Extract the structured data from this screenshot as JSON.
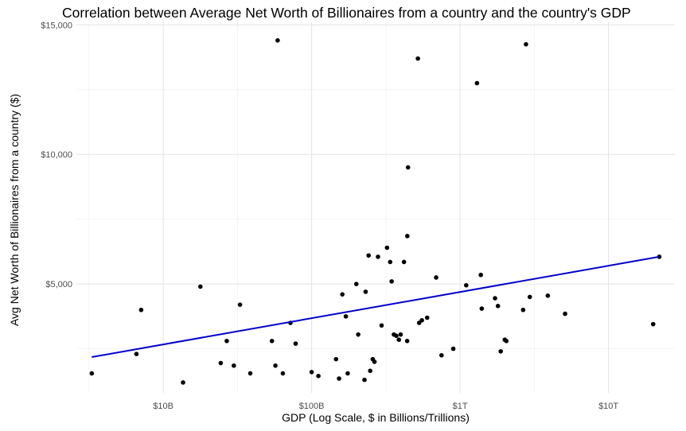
{
  "chart_data": {
    "type": "scatter",
    "title": "Correlation between Average Net Worth of Billionaires from a country and the country's GDP",
    "xlabel": "GDP (Log Scale, $ in Billions/Trillions)",
    "ylabel": "Avg Net Worth of Billionaires from a country ($)",
    "x_scale": "log10",
    "xlim": [
      2600000000.0,
      28000000000000.0
    ],
    "ylim": [
      800,
      15100
    ],
    "grid": true,
    "x_ticks": [
      {
        "value": 10000000000.0,
        "label": "$10B"
      },
      {
        "value": 100000000000.0,
        "label": "$100B"
      },
      {
        "value": 1000000000000.0,
        "label": "$1T"
      },
      {
        "value": 10000000000000.0,
        "label": "$10T"
      }
    ],
    "y_ticks": [
      {
        "value": 5000,
        "label": "$5,000"
      },
      {
        "value": 10000,
        "label": "$10,000"
      },
      {
        "value": 15000,
        "label": "$15,000"
      }
    ],
    "points": [
      [
        3300000000.0,
        1550
      ],
      [
        6600000000.0,
        2300
      ],
      [
        7100000000.0,
        4000
      ],
      [
        13600000000.0,
        1200
      ],
      [
        17800000000.0,
        4900
      ],
      [
        24400000000.0,
        1950
      ],
      [
        26800000000.0,
        2800
      ],
      [
        29900000000.0,
        1850
      ],
      [
        32900000000.0,
        4200
      ],
      [
        38600000000.0,
        1550
      ],
      [
        54000000000.0,
        2800
      ],
      [
        57000000000.0,
        1850
      ],
      [
        64000000000.0,
        1550
      ],
      [
        59000000000.0,
        14400
      ],
      [
        72000000000.0,
        3500
      ],
      [
        78000000000.0,
        2700
      ],
      [
        100000000000.0,
        1600
      ],
      [
        111000000000.0,
        1450
      ],
      [
        146000000000.0,
        2100
      ],
      [
        153000000000.0,
        1350
      ],
      [
        161000000000.0,
        4600
      ],
      [
        170000000000.0,
        3750
      ],
      [
        175000000000.0,
        1550
      ],
      [
        200000000000.0,
        5000
      ],
      [
        206000000000.0,
        3050
      ],
      [
        227000000000.0,
        1300
      ],
      [
        231000000000.0,
        4700
      ],
      [
        242000000000.0,
        6100
      ],
      [
        248000000000.0,
        1650
      ],
      [
        258000000000.0,
        2100
      ],
      [
        265000000000.0,
        2000
      ],
      [
        280000000000.0,
        6050
      ],
      [
        296000000000.0,
        3400
      ],
      [
        322000000000.0,
        6400
      ],
      [
        338000000000.0,
        5850
      ],
      [
        346000000000.0,
        5100
      ],
      [
        358000000000.0,
        3050
      ],
      [
        372000000000.0,
        3000
      ],
      [
        387000000000.0,
        2850
      ],
      [
        398000000000.0,
        3050
      ],
      [
        419000000000.0,
        5850
      ],
      [
        440000000000.0,
        2800
      ],
      [
        441000000000.0,
        6850
      ],
      [
        446000000000.0,
        9500
      ],
      [
        530000000000.0,
        3500
      ],
      [
        520000000000.0,
        13700
      ],
      [
        553000000000.0,
        3600
      ],
      [
        600000000000.0,
        3700
      ],
      [
        690000000000.0,
        5250
      ],
      [
        750000000000.0,
        2250
      ],
      [
        900000000000.0,
        2500
      ],
      [
        1100000000000.0,
        4950
      ],
      [
        1300000000000.0,
        12750
      ],
      [
        1380000000000.0,
        5350
      ],
      [
        1400000000000.0,
        4050
      ],
      [
        1720000000000.0,
        4450
      ],
      [
        1800000000000.0,
        4150
      ],
      [
        1880000000000.0,
        2400
      ],
      [
        2000000000000.0,
        2850
      ],
      [
        2050000000000.0,
        2800
      ],
      [
        2660000000000.0,
        4000
      ],
      [
        2780000000000.0,
        14250
      ],
      [
        2950000000000.0,
        4500
      ],
      [
        3900000000000.0,
        4550
      ],
      [
        5100000000000.0,
        3850
      ],
      [
        20000000000000.0,
        3450
      ],
      [
        22000000000000.0,
        6050
      ]
    ],
    "trendline": {
      "x": [
        3300000000.0,
        22000000000000.0
      ],
      "y": [
        2180,
        6050
      ]
    }
  }
}
